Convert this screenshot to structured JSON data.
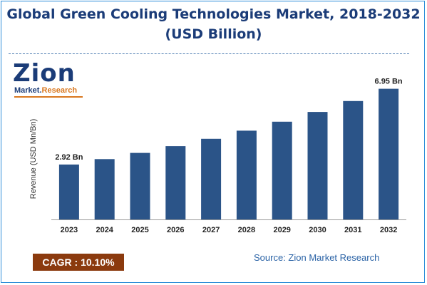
{
  "header": {
    "title_line1": "Global Green Cooling Technologies Market, 2018-2032",
    "title_line2": "(USD Billion)"
  },
  "logo": {
    "text": "Zion",
    "tagline_a": "Market.",
    "tagline_b": "Research"
  },
  "footer": {
    "cagr": "CAGR :  10.10%",
    "source": "Source: Zion Market Research"
  },
  "colors": {
    "bar": "#2b5488",
    "title": "#1b3c78",
    "cagr_bg": "#8b3a0e",
    "source": "#2b63a6",
    "border": "#2e8ed8"
  },
  "chart_data": {
    "type": "bar",
    "categories": [
      "2023",
      "2024",
      "2025",
      "2026",
      "2027",
      "2028",
      "2029",
      "2030",
      "2031",
      "2032"
    ],
    "values": [
      2.92,
      3.21,
      3.54,
      3.9,
      4.29,
      4.72,
      5.2,
      5.72,
      6.3,
      6.95
    ],
    "data_labels": [
      {
        "index": 0,
        "text": "2.92 Bn"
      },
      {
        "index": 9,
        "text": "6.95 Bn"
      }
    ],
    "ylabel": "Revenue (USD Mn/Bn)",
    "xlabel": "",
    "ylim": [
      0,
      7.2
    ],
    "grid": false,
    "legend": "none"
  }
}
